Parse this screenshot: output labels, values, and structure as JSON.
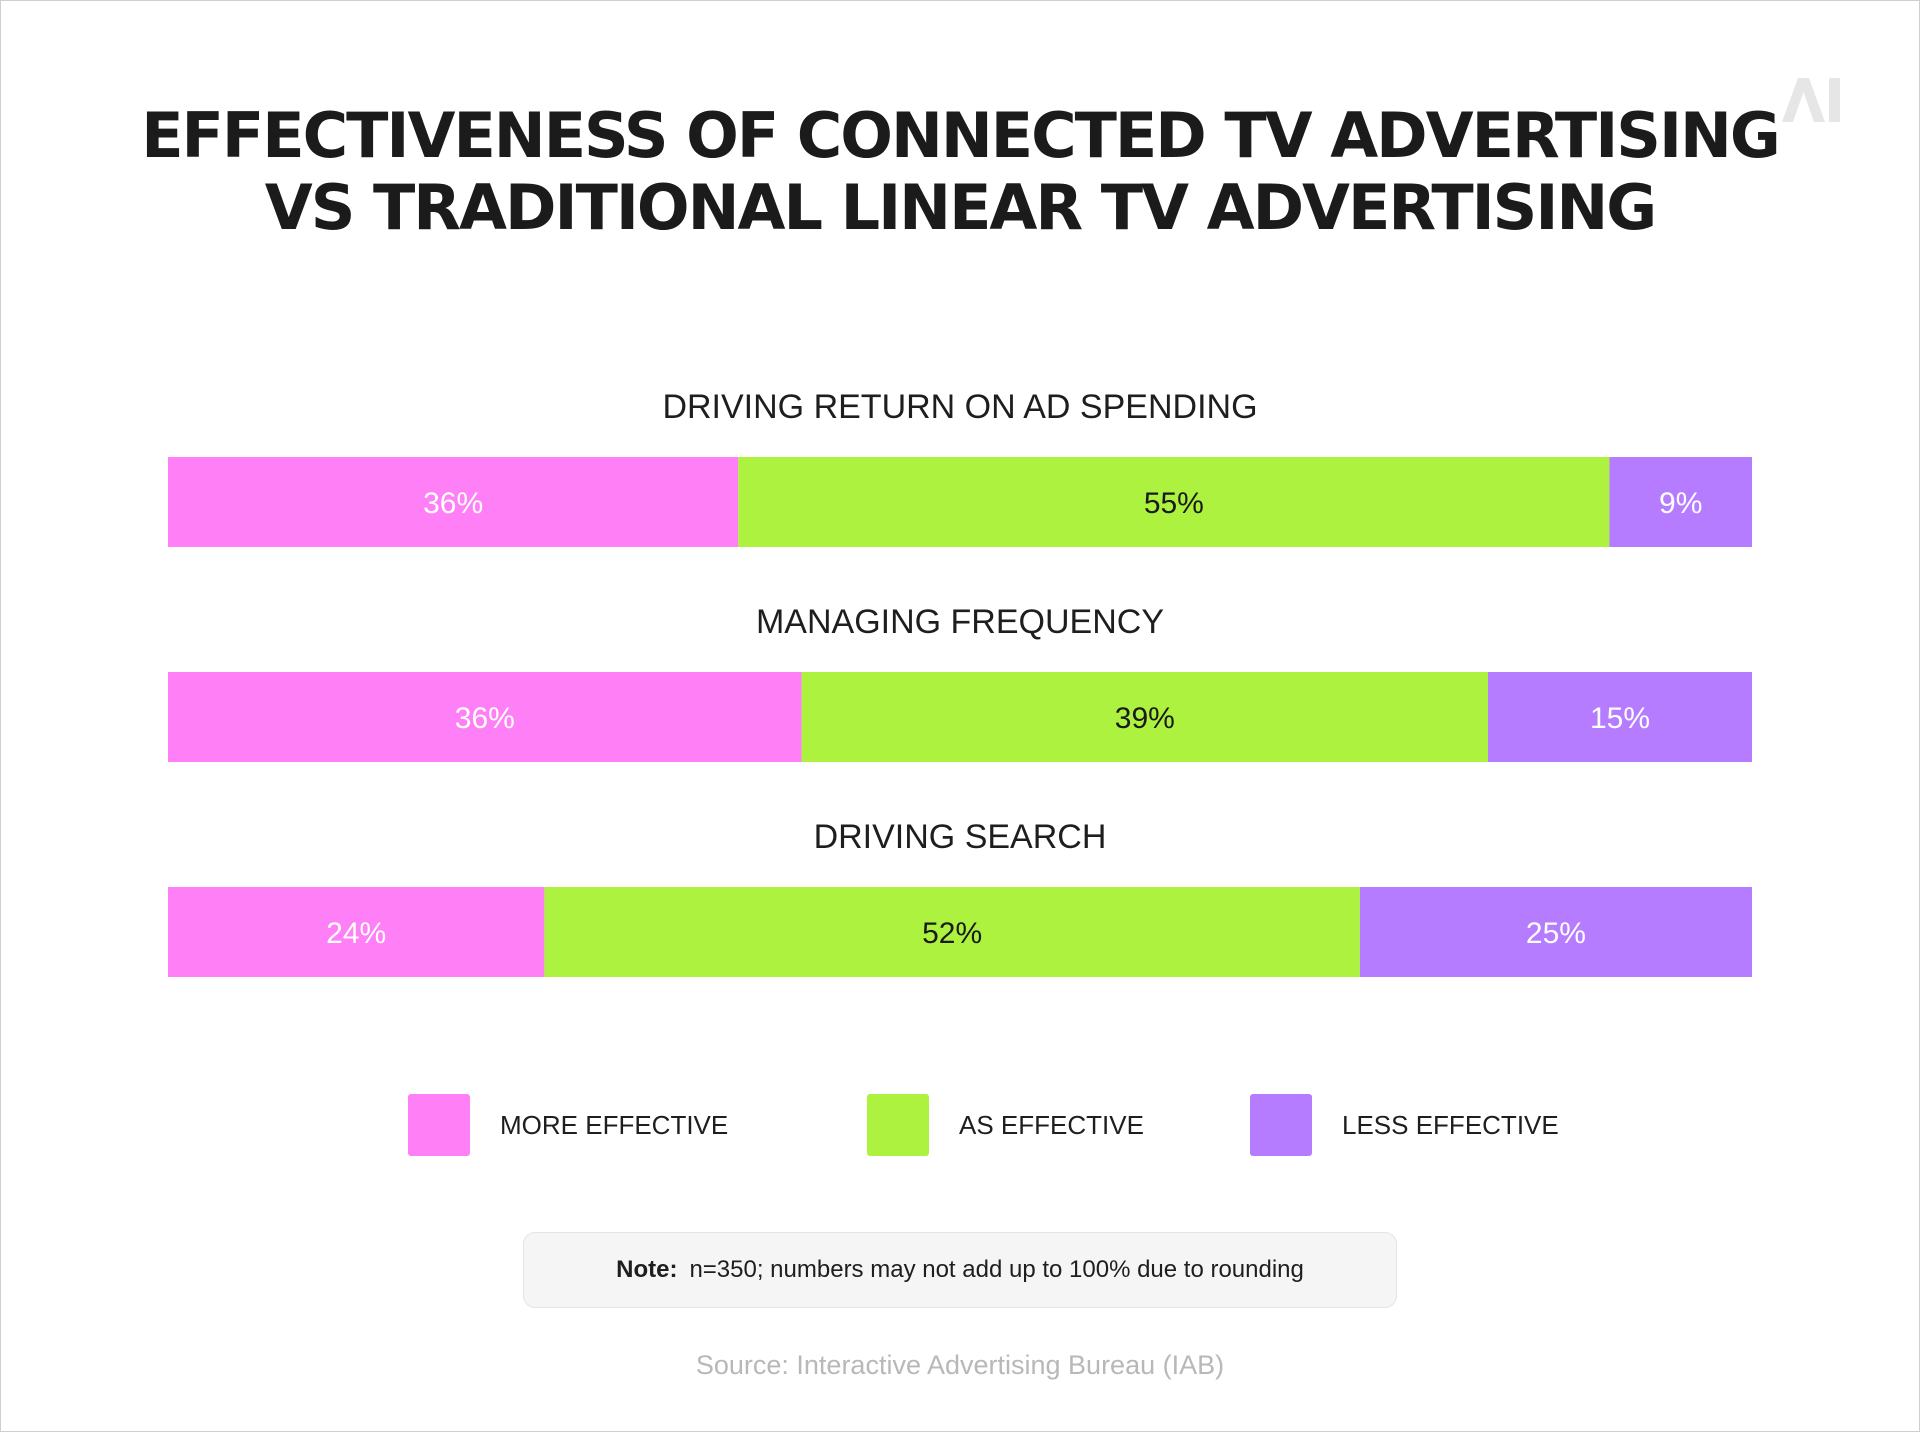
{
  "logo_text": "AI",
  "chart_data": {
    "type": "bar",
    "orientation": "horizontal-stacked-100",
    "title_lines": [
      "EFFECTIVENESS OF CONNECTED TV ADVERTISING",
      "VS TRADITIONAL LINEAR TV ADVERTISING"
    ],
    "categories": [
      "DRIVING RETURN ON AD SPENDING",
      "MANAGING FREQUENCY",
      "DRIVING SEARCH"
    ],
    "series": [
      {
        "name": "MORE EFFECTIVE",
        "color": "#ff7ff6",
        "label_color": "#ffffff",
        "values": [
          36,
          36,
          24
        ]
      },
      {
        "name": "AS EFFECTIVE",
        "color": "#adf23f",
        "label_color": "#1a1a1a",
        "values": [
          55,
          39,
          52
        ]
      },
      {
        "name": "LESS EFFECTIVE",
        "color": "#b57cff",
        "label_color": "#ffffff",
        "values": [
          9,
          15,
          25
        ]
      }
    ],
    "value_suffix": "%",
    "legend_position": "bottom"
  },
  "note": {
    "label": "Note:",
    "text": "n=350; numbers may not add up to 100% due to rounding"
  },
  "source": "Source: Interactive Advertising Bureau (IAB)"
}
